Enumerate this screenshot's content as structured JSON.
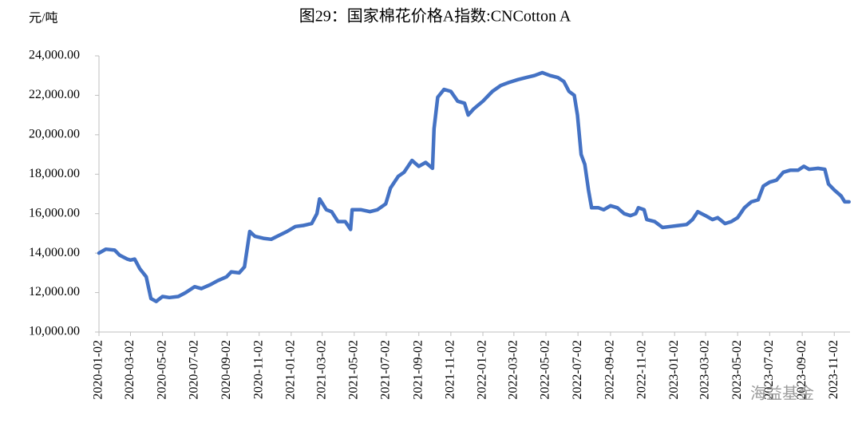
{
  "chart_data": {
    "type": "line",
    "title": "图29：国家棉花价格A指数:CNCotton A",
    "y_label": "元/吨",
    "watermark": "海益基金",
    "color": "#4472c4",
    "x": [
      "2020-01-02",
      "2020-01-15",
      "2020-02-01",
      "2020-02-10",
      "2020-02-25",
      "2020-03-02",
      "2020-03-10",
      "2020-03-20",
      "2020-04-01",
      "2020-04-10",
      "2020-04-20",
      "2020-05-02",
      "2020-05-15",
      "2020-06-01",
      "2020-06-15",
      "2020-07-02",
      "2020-07-15",
      "2020-08-01",
      "2020-08-15",
      "2020-09-01",
      "2020-09-10",
      "2020-09-25",
      "2020-10-05",
      "2020-10-15",
      "2020-10-25",
      "2020-11-10",
      "2020-11-25",
      "2020-12-10",
      "2020-12-25",
      "2021-01-10",
      "2021-01-25",
      "2021-02-10",
      "2021-02-20",
      "2021-02-25",
      "2021-03-10",
      "2021-03-20",
      "2021-04-01",
      "2021-04-15",
      "2021-04-25",
      "2021-04-28",
      "2021-05-15",
      "2021-06-01",
      "2021-06-15",
      "2021-07-01",
      "2021-07-10",
      "2021-07-25",
      "2021-08-05",
      "2021-08-20",
      "2021-09-02",
      "2021-09-15",
      "2021-09-28",
      "2021-10-01",
      "2021-10-08",
      "2021-10-20",
      "2021-11-02",
      "2021-11-15",
      "2021-11-28",
      "2021-12-05",
      "2021-12-15",
      "2022-01-02",
      "2022-01-20",
      "2022-02-05",
      "2022-02-20",
      "2022-03-10",
      "2022-03-25",
      "2022-04-10",
      "2022-04-25",
      "2022-05-10",
      "2022-05-25",
      "2022-06-05",
      "2022-06-15",
      "2022-06-25",
      "2022-07-01",
      "2022-07-08",
      "2022-07-15",
      "2022-07-22",
      "2022-07-28",
      "2022-08-10",
      "2022-08-20",
      "2022-09-02",
      "2022-09-15",
      "2022-09-28",
      "2022-10-10",
      "2022-10-20",
      "2022-10-25",
      "2022-11-05",
      "2022-11-10",
      "2022-11-25",
      "2022-12-10",
      "2022-12-25",
      "2023-01-10",
      "2023-01-25",
      "2023-02-05",
      "2023-02-15",
      "2023-03-02",
      "2023-03-15",
      "2023-03-25",
      "2023-04-08",
      "2023-04-20",
      "2023-05-02",
      "2023-05-15",
      "2023-05-28",
      "2023-06-10",
      "2023-06-20",
      "2023-07-02",
      "2023-07-15",
      "2023-07-28",
      "2023-08-10",
      "2023-08-25",
      "2023-09-05",
      "2023-09-15",
      "2023-10-02",
      "2023-10-15",
      "2023-10-22",
      "2023-11-02",
      "2023-11-15",
      "2023-11-22",
      "2023-11-30"
    ],
    "values": [
      14000,
      14200,
      14150,
      13900,
      13700,
      13650,
      13700,
      13200,
      12800,
      11700,
      11550,
      11800,
      11750,
      11800,
      12000,
      12300,
      12200,
      12400,
      12600,
      12800,
      13050,
      13000,
      13300,
      15100,
      14850,
      14750,
      14700,
      14900,
      15100,
      15350,
      15400,
      15500,
      16000,
      16750,
      16200,
      16100,
      15600,
      15600,
      15200,
      16200,
      16200,
      16100,
      16200,
      16500,
      17300,
      17900,
      18100,
      18700,
      18400,
      18600,
      18300,
      20300,
      21900,
      22300,
      22200,
      21700,
      21600,
      21000,
      21300,
      21700,
      22200,
      22500,
      22650,
      22800,
      22900,
      23000,
      23150,
      23000,
      22900,
      22700,
      22200,
      22000,
      21000,
      19000,
      18500,
      17200,
      16300,
      16300,
      16200,
      16400,
      16300,
      16000,
      15900,
      16000,
      16300,
      16200,
      15700,
      15600,
      15300,
      15350,
      15400,
      15450,
      15700,
      16100,
      15900,
      15700,
      15800,
      15500,
      15600,
      15800,
      16300,
      16600,
      16700,
      17400,
      17600,
      17700,
      18100,
      18200,
      18200,
      18400,
      18250,
      18300,
      18250,
      17500,
      17200,
      16900,
      16600,
      16600
    ],
    "xlim": [
      "2020-01-02",
      "2023-12-02"
    ],
    "xticks": [
      "2020-01-02",
      "2020-03-02",
      "2020-05-02",
      "2020-07-02",
      "2020-09-02",
      "2020-11-02",
      "2021-01-02",
      "2021-03-02",
      "2021-05-02",
      "2021-07-02",
      "2021-09-02",
      "2021-11-02",
      "2022-01-02",
      "2022-03-02",
      "2022-05-02",
      "2022-07-02",
      "2022-09-02",
      "2022-11-02",
      "2023-01-02",
      "2023-03-02",
      "2023-05-02",
      "2023-07-02",
      "2023-09-02",
      "2023-11-02"
    ],
    "ylim": [
      10000,
      24000
    ],
    "yticks": [
      {
        "value": 10000,
        "label": "10,000.00"
      },
      {
        "value": 12000,
        "label": "12,000.00"
      },
      {
        "value": 14000,
        "label": "14,000.00"
      },
      {
        "value": 16000,
        "label": "16,000.00"
      },
      {
        "value": 18000,
        "label": "18,000.00"
      },
      {
        "value": 20000,
        "label": "20,000.00"
      },
      {
        "value": 22000,
        "label": "22,000.00"
      },
      {
        "value": 24000,
        "label": "24,000.00"
      }
    ],
    "grid": false
  }
}
